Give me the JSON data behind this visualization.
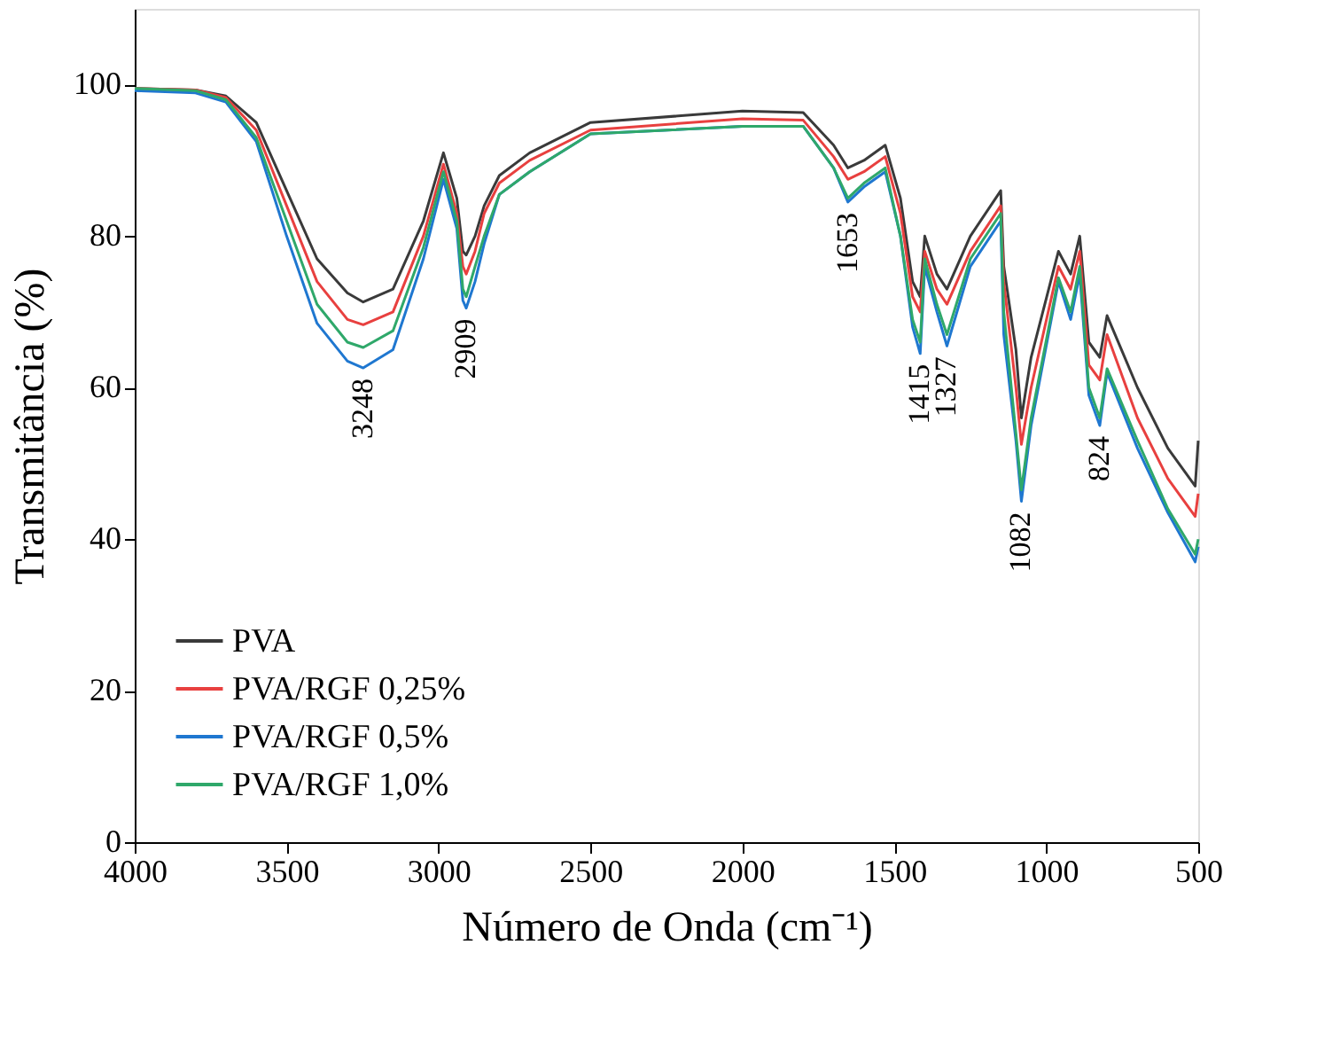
{
  "chart_data": {
    "type": "line",
    "xlabel": "Número de Onda (cm⁻¹)",
    "ylabel": "Transmitância (%)",
    "x": [
      4000,
      3800,
      3700,
      3600,
      3500,
      3400,
      3300,
      3248,
      3150,
      3050,
      2984,
      2940,
      2920,
      2909,
      2880,
      2850,
      2800,
      2700,
      2500,
      2000,
      1800,
      1700,
      1653,
      1600,
      1530,
      1480,
      1440,
      1415,
      1400,
      1360,
      1327,
      1250,
      1150,
      1140,
      1100,
      1082,
      1050,
      960,
      920,
      890,
      860,
      824,
      800,
      700,
      600,
      510,
      500
    ],
    "series": [
      {
        "name": "PVA",
        "color": "#3a3a3a",
        "values": [
          99.5,
          99.3,
          98.5,
          95,
          86,
          77,
          72.5,
          71.3,
          73,
          82,
          91,
          85,
          78,
          77.5,
          80,
          84,
          88,
          91,
          95,
          96.5,
          96.3,
          92,
          89,
          90,
          92,
          85,
          74,
          72,
          80,
          75,
          73,
          80,
          86,
          76,
          65,
          56,
          64,
          78,
          75,
          80,
          66,
          64,
          69.5,
          60,
          52,
          47,
          53
        ]
      },
      {
        "name": "PVA/RGF 0,25%",
        "color": "#e8403f",
        "values": [
          99.5,
          99.3,
          98.3,
          94,
          84,
          74,
          69,
          68.3,
          70,
          80,
          89.5,
          83,
          76,
          75,
          78,
          83,
          87,
          90,
          94,
          95.5,
          95.3,
          90.5,
          87.5,
          88.5,
          90.5,
          83,
          72,
          70,
          78,
          73,
          71,
          78,
          84,
          74,
          60,
          52.5,
          60,
          76,
          73,
          78,
          63,
          61,
          67,
          56,
          48,
          43,
          46
        ]
      },
      {
        "name": "PVA/RGF 0,5%",
        "color": "#1f77d0",
        "values": [
          99.2,
          98.9,
          97.7,
          92.5,
          80,
          68.5,
          63.5,
          62.6,
          65,
          77,
          87.5,
          81,
          71.5,
          70.5,
          74,
          79,
          85.5,
          88.5,
          93.5,
          94.5,
          94.5,
          89,
          84.5,
          86.5,
          88.5,
          80,
          68,
          64.5,
          76,
          70,
          65.5,
          76,
          82,
          67,
          53,
          45,
          55,
          74,
          69,
          75,
          59,
          55,
          62,
          52,
          43.5,
          37,
          39
        ]
      },
      {
        "name": "PVA/RGF 1,0%",
        "color": "#2fa86a",
        "values": [
          99.5,
          99.2,
          98,
          93,
          82,
          71,
          66,
          65.3,
          67.5,
          78.5,
          88.5,
          82,
          73,
          72,
          76,
          80,
          85.5,
          88.5,
          93.5,
          94.5,
          94.5,
          89,
          85,
          87,
          89,
          80,
          69,
          66,
          77,
          71,
          67,
          77,
          83,
          70,
          54,
          46.5,
          56,
          74.5,
          70,
          76,
          60,
          56,
          62.5,
          53,
          44,
          38,
          40
        ]
      }
    ],
    "annotations": [
      {
        "text": "3248",
        "x": 3248,
        "y": 62.6
      },
      {
        "text": "2909",
        "x": 2909,
        "y": 70.5
      },
      {
        "text": "1653",
        "x": 1653,
        "y": 84.5
      },
      {
        "text": "1415",
        "x": 1415,
        "y": 64.5
      },
      {
        "text": "1327",
        "x": 1327,
        "y": 65.5
      },
      {
        "text": "1082",
        "x": 1082,
        "y": 45
      },
      {
        "text": "824",
        "x": 824,
        "y": 55
      }
    ],
    "xlim": [
      4000,
      500
    ],
    "xticks": [
      4000,
      3500,
      3000,
      2500,
      2000,
      1500,
      1000,
      500
    ],
    "ylim": [
      0,
      110
    ],
    "yticks": [
      0,
      20,
      40,
      60,
      80,
      100
    ],
    "grid": false,
    "legend": "bottom left",
    "marker": "none",
    "line_style": "solid"
  }
}
